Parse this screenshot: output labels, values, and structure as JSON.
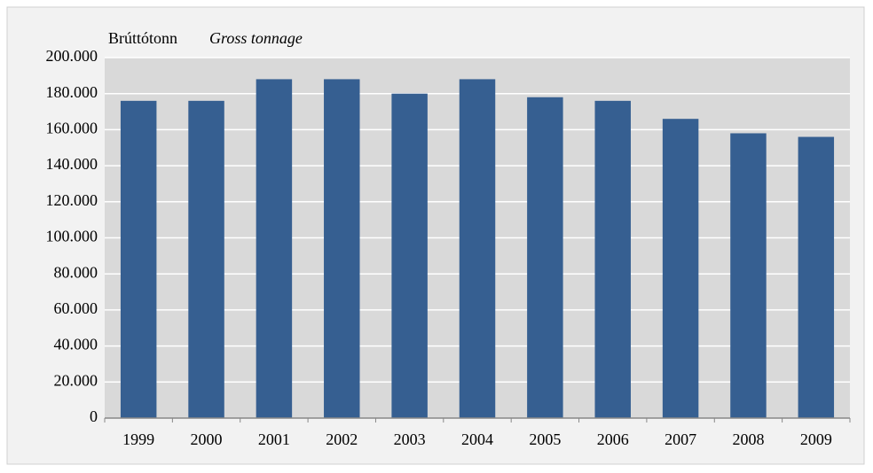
{
  "chart_data": {
    "type": "bar",
    "y_label": "Brúttótonn",
    "y_label_en": "Gross tonnage",
    "categories": [
      "1999",
      "2000",
      "2001",
      "2002",
      "2003",
      "2004",
      "2005",
      "2006",
      "2007",
      "2008",
      "2009"
    ],
    "values": [
      176000,
      176000,
      188000,
      188000,
      180000,
      188000,
      178000,
      176000,
      166000,
      158000,
      156000
    ],
    "color": "#365f91",
    "ylim": [
      0,
      200000
    ],
    "yticks": [
      0,
      {
        "value": 20000,
        "label": "20.000"
      },
      {
        "value": 40000,
        "label": "40.000"
      },
      {
        "value": 60000,
        "label": "60.000"
      },
      {
        "value": 80000,
        "label": "80.000"
      },
      {
        "value": 100000,
        "label": "100.000"
      },
      {
        "value": 120000,
        "label": "120.000"
      },
      {
        "value": 140000,
        "label": "140.000"
      },
      {
        "value": 160000,
        "label": "160.000"
      },
      {
        "value": 180000,
        "label": "180.000"
      },
      {
        "value": 200000,
        "label": "200.000"
      }
    ],
    "grid": true
  }
}
